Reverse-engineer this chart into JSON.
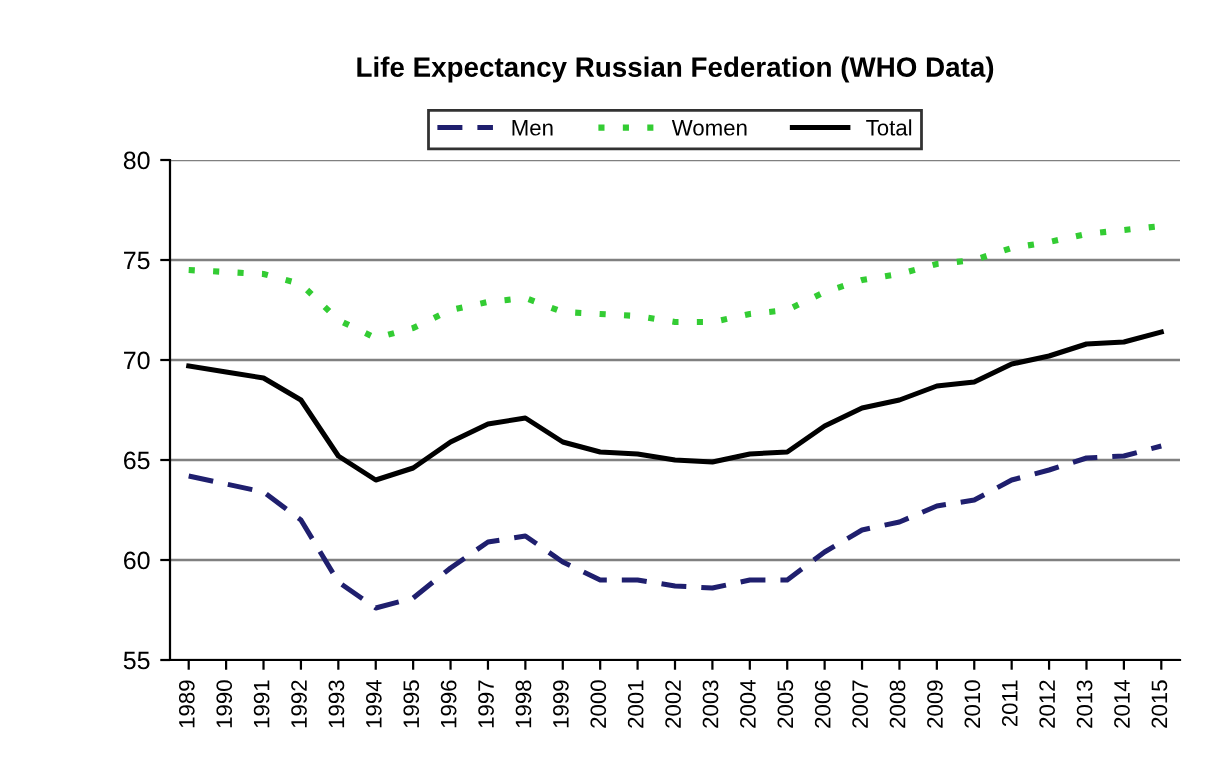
{
  "chart_data": {
    "type": "line",
    "title": "Life Expectancy Russian Federation (WHO Data)",
    "categories": [
      "1989",
      "1990",
      "1991",
      "1992",
      "1993",
      "1994",
      "1995",
      "1996",
      "1997",
      "1998",
      "1999",
      "2000",
      "2001",
      "2002",
      "2003",
      "2004",
      "2005",
      "2006",
      "2007",
      "2008",
      "2009",
      "2010",
      "2011",
      "2012",
      "2013",
      "2014",
      "2015"
    ],
    "series": [
      {
        "name": "Men",
        "color": "#1f1f6e",
        "line_style": "dashed",
        "values": [
          64.2,
          63.8,
          63.4,
          62.0,
          58.9,
          57.6,
          58.1,
          59.6,
          60.9,
          61.2,
          59.9,
          59.0,
          59.0,
          58.7,
          58.6,
          59.0,
          59.0,
          60.4,
          61.5,
          61.9,
          62.7,
          63.0,
          64.0,
          64.5,
          65.1,
          65.2,
          65.7
        ]
      },
      {
        "name": "Women",
        "color": "#33cc33",
        "line_style": "dotted",
        "values": [
          74.5,
          74.4,
          74.3,
          73.8,
          72.0,
          71.1,
          71.6,
          72.5,
          72.9,
          73.1,
          72.4,
          72.3,
          72.2,
          71.9,
          71.9,
          72.3,
          72.5,
          73.4,
          74.0,
          74.3,
          74.8,
          75.0,
          75.6,
          75.9,
          76.3,
          76.5,
          76.7
        ]
      },
      {
        "name": "Total",
        "color": "#000000",
        "line_style": "solid",
        "values": [
          69.7,
          69.4,
          69.1,
          68.0,
          65.2,
          64.0,
          64.6,
          65.9,
          66.8,
          67.1,
          65.9,
          65.4,
          65.3,
          65.0,
          64.9,
          65.3,
          65.4,
          66.7,
          67.6,
          68.0,
          68.7,
          68.9,
          69.8,
          70.2,
          70.8,
          70.9,
          71.4
        ]
      }
    ],
    "ylim": [
      55,
      80
    ],
    "yticks": [
      55,
      60,
      65,
      70,
      75,
      80
    ],
    "grid": "y",
    "legend": "top",
    "marker": "none"
  }
}
